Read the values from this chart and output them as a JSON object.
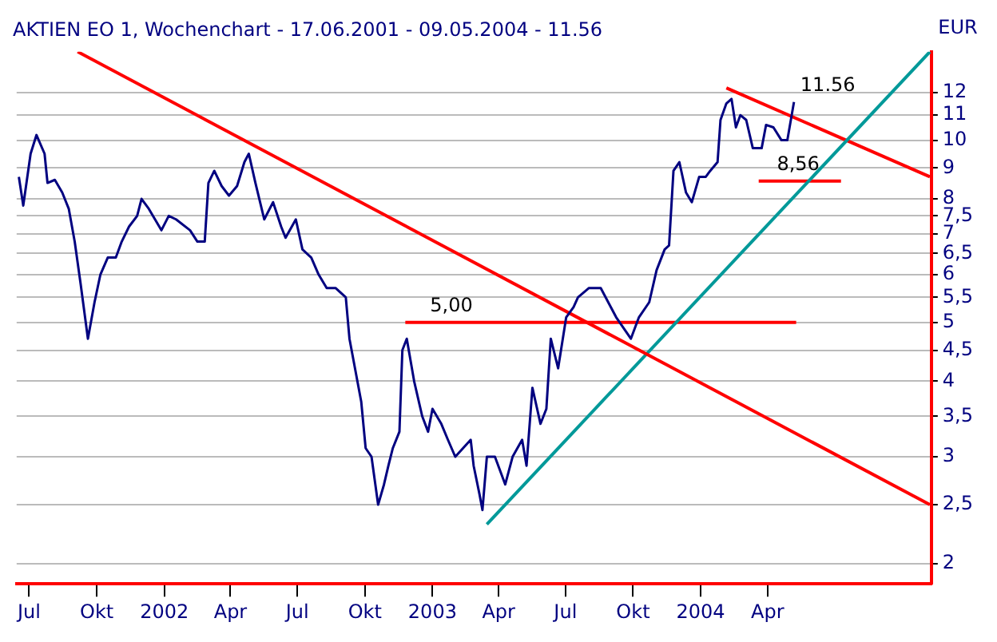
{
  "chart_data": {
    "type": "line",
    "title": "AKTIEN EO 1, Wochenchart - 17.06.2001 - 09.05.2004 - 11.56",
    "ylabel": "EUR",
    "log": "y",
    "grid": "y",
    "legend": false,
    "marker": "none",
    "line_style": "solid",
    "xlim": [
      "2001-06-14",
      "2004-11-10"
    ],
    "ylim": [
      1.85,
      14
    ],
    "xticks": [
      {
        "value": "2001-07-01",
        "label": "Jul"
      },
      {
        "value": "2001-10-01",
        "label": "Okt"
      },
      {
        "value": "2002-01-01",
        "label": "2002"
      },
      {
        "value": "2002-04-01",
        "label": "Apr"
      },
      {
        "value": "2002-07-01",
        "label": "Jul"
      },
      {
        "value": "2002-10-01",
        "label": "Okt"
      },
      {
        "value": "2003-01-01",
        "label": "2003"
      },
      {
        "value": "2003-04-01",
        "label": "Apr"
      },
      {
        "value": "2003-07-01",
        "label": "Jul"
      },
      {
        "value": "2003-10-01",
        "label": "Okt"
      },
      {
        "value": "2004-01-01",
        "label": "2004"
      },
      {
        "value": "2004-04-01",
        "label": "Apr"
      }
    ],
    "yticks": [
      2,
      {
        "value": 2.5,
        "label": "2,5"
      },
      3,
      {
        "value": 3.5,
        "label": "3,5"
      },
      4,
      {
        "value": 4.5,
        "label": "4,5"
      },
      5,
      {
        "value": 5.5,
        "label": "5,5"
      },
      6,
      {
        "value": 6.5,
        "label": "6,5"
      },
      7,
      {
        "value": 7.5,
        "label": "7,5"
      },
      8,
      9,
      10,
      11,
      12
    ],
    "series": [
      {
        "color": "#000080",
        "x": [
          "2001-06-17",
          "2001-06-23",
          "2001-07-03",
          "2001-07-11",
          "2001-07-22",
          "2001-07-26",
          "2001-08-05",
          "2001-08-15",
          "2001-08-24",
          "2001-09-01",
          "2001-09-09",
          "2001-09-19",
          "2001-09-28",
          "2001-10-06",
          "2001-10-16",
          "2001-10-27",
          "2001-11-04",
          "2001-11-14",
          "2001-11-25",
          "2001-12-01",
          "2001-12-11",
          "2001-12-28",
          "2002-01-07",
          "2002-01-17",
          "2002-02-05",
          "2002-02-15",
          "2002-02-25",
          "2002-03-02",
          "2002-03-10",
          "2002-03-20",
          "2002-03-30",
          "2002-04-10",
          "2002-04-20",
          "2002-04-26",
          "2002-05-05",
          "2002-05-17",
          "2002-05-29",
          "2002-06-09",
          "2002-06-15",
          "2002-06-29",
          "2002-07-08",
          "2002-07-20",
          "2002-07-30",
          "2002-08-10",
          "2002-08-22",
          "2002-09-05",
          "2002-09-10",
          "2002-09-26",
          "2002-10-02",
          "2002-10-10",
          "2002-10-19",
          "2002-10-27",
          "2002-11-02",
          "2002-11-08",
          "2002-11-17",
          "2002-11-21",
          "2002-11-27",
          "2002-12-07",
          "2002-12-18",
          "2002-12-26",
          "2003-01-01",
          "2003-01-13",
          "2003-01-22",
          "2003-02-01",
          "2003-02-22",
          "2003-02-26",
          "2003-03-06",
          "2003-03-10",
          "2003-03-16",
          "2003-03-27",
          "2003-04-10",
          "2003-04-20",
          "2003-05-03",
          "2003-05-09",
          "2003-05-17",
          "2003-05-28",
          "2003-06-05",
          "2003-06-11",
          "2003-06-21",
          "2003-07-02",
          "2003-07-12",
          "2003-07-18",
          "2003-08-02",
          "2003-08-18",
          "2003-09-08",
          "2003-09-28",
          "2003-10-09",
          "2003-10-23",
          "2003-11-02",
          "2003-11-13",
          "2003-11-19",
          "2003-11-25",
          "2003-12-03",
          "2003-12-12",
          "2003-12-20",
          "2003-12-30",
          "2004-01-08",
          "2004-01-14",
          "2004-01-24",
          "2004-01-28",
          "2004-02-05",
          "2004-02-12",
          "2004-02-18",
          "2004-02-24",
          "2004-03-03",
          "2004-03-12",
          "2004-03-24",
          "2004-03-30",
          "2004-04-09",
          "2004-04-20",
          "2004-04-28",
          "2004-05-07"
        ],
        "values": [
          8.7,
          7.8,
          9.5,
          10.2,
          9.5,
          8.5,
          8.6,
          8.2,
          7.7,
          6.8,
          5.8,
          4.7,
          5.4,
          6.0,
          6.4,
          6.4,
          6.8,
          7.2,
          7.5,
          8.0,
          7.7,
          7.1,
          7.5,
          7.4,
          7.1,
          6.8,
          6.8,
          8.5,
          8.9,
          8.4,
          8.1,
          8.4,
          9.2,
          9.5,
          8.5,
          7.4,
          7.9,
          7.2,
          6.9,
          7.4,
          6.6,
          6.4,
          6.0,
          5.7,
          5.7,
          5.5,
          4.7,
          3.7,
          3.1,
          3.0,
          2.5,
          2.7,
          2.9,
          3.1,
          3.3,
          4.5,
          4.7,
          4.0,
          3.5,
          3.3,
          3.6,
          3.4,
          3.2,
          3.0,
          3.2,
          2.9,
          2.6,
          2.45,
          3.0,
          3.0,
          2.7,
          3.0,
          3.2,
          2.9,
          3.9,
          3.4,
          3.6,
          4.7,
          4.2,
          5.1,
          5.3,
          5.5,
          5.7,
          5.7,
          5.1,
          4.7,
          5.1,
          5.4,
          6.1,
          6.6,
          6.7,
          8.9,
          9.2,
          8.2,
          7.9,
          8.7,
          8.7,
          8.9,
          9.2,
          10.8,
          11.5,
          11.7,
          10.5,
          11.0,
          10.8,
          9.7,
          9.7,
          10.6,
          10.5,
          10.0,
          10.0,
          11.56
        ]
      },
      {
        "color": "#ff0000",
        "x": [
          "2001-09-05",
          "2004-11-08"
        ],
        "values": [
          14,
          2.5
        ]
      },
      {
        "color": "#009999",
        "x": [
          "2003-03-16",
          "2004-11-08"
        ],
        "values": [
          2.32,
          14
        ]
      },
      {
        "color": "#ff0000",
        "x": [
          "2004-02-05",
          "2004-11-08"
        ],
        "values": [
          12.2,
          8.7
        ]
      },
      {
        "color": "#ff0000",
        "x": [
          "2002-11-25",
          "2004-05-10"
        ],
        "values": [
          5.0,
          5.0
        ]
      },
      {
        "color": "#ff0000",
        "x": [
          "2004-03-20",
          "2004-07-10"
        ],
        "values": [
          8.56,
          8.56
        ]
      }
    ],
    "annotations": [
      {
        "text": "5,00",
        "x": "2002-12-20",
        "y": 5.0
      },
      {
        "text": "8,56",
        "x": "2004-04-05",
        "y": 8.56
      },
      {
        "text": "11.56",
        "x": "2004-05-07",
        "y": 11.56
      }
    ]
  }
}
